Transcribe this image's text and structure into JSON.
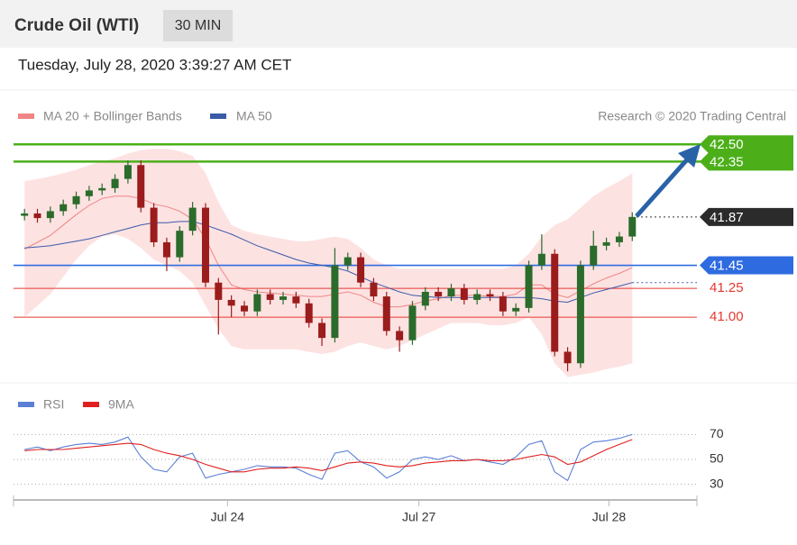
{
  "header": {
    "title": "Crude Oil (WTI)",
    "timeframe": "30 MIN",
    "timestamp": "Tuesday, July 28, 2020 3:39:27 AM CET",
    "source": "Research © 2020 Trading Central"
  },
  "chart_data": [
    {
      "type": "candlestick",
      "up_color": "#2b6b2b",
      "down_color": "#9b1c1c",
      "xlim": [
        0,
        52.5
      ],
      "ylim": [
        40.43,
        42.58
      ],
      "candles": [
        [
          41.88,
          41.94,
          41.84,
          41.9
        ],
        [
          41.9,
          41.94,
          41.82,
          41.86
        ],
        [
          41.86,
          41.96,
          41.82,
          41.92
        ],
        [
          41.92,
          42.02,
          41.88,
          41.98
        ],
        [
          41.98,
          42.09,
          41.94,
          42.05
        ],
        [
          42.05,
          42.14,
          42.01,
          42.1
        ],
        [
          42.1,
          42.16,
          42.06,
          42.12
        ],
        [
          42.12,
          42.24,
          42.08,
          42.2
        ],
        [
          42.2,
          42.36,
          42.16,
          42.32
        ],
        [
          42.32,
          42.36,
          41.91,
          41.95
        ],
        [
          41.95,
          41.99,
          41.61,
          41.65
        ],
        [
          41.65,
          41.69,
          41.4,
          41.52
        ],
        [
          41.52,
          41.79,
          41.48,
          41.75
        ],
        [
          41.75,
          42.0,
          41.71,
          41.95
        ],
        [
          41.95,
          41.99,
          41.26,
          41.3
        ],
        [
          41.3,
          41.34,
          40.85,
          41.15
        ],
        [
          41.15,
          41.19,
          41.0,
          41.1
        ],
        [
          41.1,
          41.14,
          41.01,
          41.05
        ],
        [
          41.05,
          41.24,
          41.01,
          41.2
        ],
        [
          41.2,
          41.24,
          41.11,
          41.15
        ],
        [
          41.15,
          41.22,
          41.11,
          41.18
        ],
        [
          41.18,
          41.22,
          41.08,
          41.12
        ],
        [
          41.12,
          41.16,
          40.91,
          40.95
        ],
        [
          40.95,
          40.99,
          40.75,
          40.82
        ],
        [
          40.82,
          41.6,
          40.78,
          41.45
        ],
        [
          41.45,
          41.56,
          41.41,
          41.52
        ],
        [
          41.52,
          41.56,
          41.26,
          41.3
        ],
        [
          41.3,
          41.34,
          41.14,
          41.18
        ],
        [
          41.18,
          41.22,
          40.84,
          40.88
        ],
        [
          40.88,
          40.92,
          40.7,
          40.8
        ],
        [
          40.8,
          41.14,
          40.76,
          41.1
        ],
        [
          41.1,
          41.26,
          41.06,
          41.22
        ],
        [
          41.22,
          41.26,
          41.14,
          41.18
        ],
        [
          41.18,
          41.29,
          41.14,
          41.25
        ],
        [
          41.25,
          41.29,
          41.11,
          41.15
        ],
        [
          41.15,
          41.24,
          41.11,
          41.2
        ],
        [
          41.2,
          41.24,
          41.14,
          41.18
        ],
        [
          41.18,
          41.22,
          41.01,
          41.05
        ],
        [
          41.05,
          41.12,
          41.01,
          41.08
        ],
        [
          41.08,
          41.49,
          41.04,
          41.45
        ],
        [
          41.45,
          41.72,
          41.41,
          41.55
        ],
        [
          41.55,
          41.59,
          40.66,
          40.7
        ],
        [
          40.7,
          40.74,
          40.53,
          40.6
        ],
        [
          40.6,
          41.49,
          40.56,
          41.45
        ],
        [
          41.45,
          41.75,
          41.41,
          41.62
        ],
        [
          41.62,
          41.69,
          41.58,
          41.65
        ],
        [
          41.65,
          41.74,
          41.61,
          41.7
        ],
        [
          41.7,
          41.91,
          41.66,
          41.87
        ]
      ],
      "bands": {
        "name": "MA 20 + Bollinger Bands",
        "color": "#f08585",
        "fill": "#fde2e2",
        "upper": [
          42.18,
          42.2,
          42.22,
          42.25,
          42.28,
          42.32,
          42.35,
          42.38,
          42.42,
          42.45,
          42.46,
          42.46,
          42.44,
          42.4,
          42.25,
          42.0,
          41.8,
          41.75,
          41.72,
          41.7,
          41.68,
          41.66,
          41.66,
          41.68,
          41.7,
          41.68,
          41.6,
          41.5,
          41.45,
          41.42,
          41.42,
          41.42,
          41.42,
          41.42,
          41.42,
          41.42,
          41.42,
          41.42,
          41.45,
          41.55,
          41.7,
          41.8,
          41.85,
          41.95,
          42.05,
          42.12,
          42.18,
          42.25
        ],
        "middle": [
          41.59,
          41.65,
          41.71,
          41.8,
          41.89,
          41.97,
          42.03,
          42.05,
          42.05,
          42.03,
          41.98,
          41.96,
          41.92,
          41.85,
          41.68,
          41.45,
          41.28,
          41.24,
          41.22,
          41.21,
          41.2,
          41.19,
          41.18,
          41.18,
          41.2,
          41.22,
          41.19,
          41.13,
          41.09,
          41.09,
          41.11,
          41.14,
          41.16,
          41.19,
          41.19,
          41.19,
          41.18,
          41.18,
          41.2,
          41.28,
          41.28,
          41.2,
          41.17,
          41.23,
          41.29,
          41.34,
          41.38,
          41.43
        ],
        "lower": [
          41.0,
          41.1,
          41.2,
          41.35,
          41.5,
          41.62,
          41.7,
          41.72,
          41.68,
          41.6,
          41.5,
          41.45,
          41.4,
          41.3,
          41.1,
          40.9,
          40.75,
          40.72,
          40.72,
          40.72,
          40.72,
          40.72,
          40.7,
          40.68,
          40.7,
          40.75,
          40.78,
          40.75,
          40.72,
          40.75,
          40.8,
          40.85,
          40.9,
          40.95,
          40.95,
          40.95,
          40.93,
          40.93,
          40.95,
          41.0,
          40.85,
          40.6,
          40.48,
          40.5,
          40.52,
          40.55,
          40.57,
          40.6
        ]
      },
      "series": [
        {
          "name": "MA 50",
          "color": "#3a5ba8",
          "values": [
            41.6,
            41.61,
            41.62,
            41.64,
            41.66,
            41.68,
            41.71,
            41.74,
            41.77,
            41.8,
            41.82,
            41.82,
            41.83,
            41.83,
            41.8,
            41.76,
            41.72,
            41.67,
            41.62,
            41.58,
            41.54,
            41.5,
            41.47,
            41.45,
            41.43,
            41.4,
            41.35,
            41.3,
            41.26,
            41.22,
            41.19,
            41.18,
            41.17,
            41.17,
            41.17,
            41.17,
            41.17,
            41.17,
            41.17,
            41.17,
            41.16,
            41.14,
            41.13,
            41.17,
            41.21,
            41.24,
            41.27,
            41.3
          ]
        }
      ],
      "levels": [
        {
          "value": 42.5,
          "label": "42.50",
          "color": "#4caf1a",
          "style": "box"
        },
        {
          "value": 42.35,
          "label": "42.35",
          "color": "#4caf1a",
          "style": "box"
        },
        {
          "value": 41.87,
          "label": "41.87",
          "color": "#2b2b2b",
          "style": "current"
        },
        {
          "value": 41.45,
          "label": "41.45",
          "color": "#2f6be0",
          "style": "box"
        },
        {
          "value": 41.25,
          "label": "41.25",
          "color": "#e5392f",
          "style": "text"
        },
        {
          "value": 41.0,
          "label": "41.00",
          "color": "#e5392f",
          "style": "text"
        }
      ]
    },
    {
      "type": "line",
      "xlim": [
        0,
        52.5
      ],
      "ylim": [
        21,
        79
      ],
      "yticks": [
        30,
        50,
        70
      ],
      "xticks": [
        {
          "value": 16.2,
          "label": "Jul 24"
        },
        {
          "value": 31,
          "label": "Jul 27"
        },
        {
          "value": 45.7,
          "label": "Jul 28"
        }
      ],
      "series": [
        {
          "name": "RSI",
          "color": "#5b7fd6",
          "values": [
            58,
            60,
            57,
            60,
            62,
            63,
            62,
            64,
            68,
            52,
            42,
            40,
            52,
            55,
            35,
            38,
            40,
            42,
            45,
            44,
            44,
            43,
            38,
            34,
            55,
            57,
            48,
            44,
            35,
            40,
            50,
            52,
            50,
            53,
            49,
            50,
            48,
            46,
            52,
            62,
            65,
            40,
            33,
            58,
            64,
            65,
            67,
            70
          ]
        },
        {
          "name": "9MA",
          "color": "#e02020",
          "values": [
            57,
            58,
            58,
            58,
            59,
            60,
            61,
            62,
            63,
            62,
            58,
            55,
            53,
            50,
            46,
            43,
            40,
            40,
            42,
            43,
            43,
            44,
            43,
            41,
            44,
            47,
            48,
            47,
            45,
            44,
            45,
            47,
            48,
            49,
            49,
            50,
            49,
            49,
            50,
            52,
            54,
            52,
            46,
            48,
            53,
            58,
            62,
            66
          ]
        }
      ]
    }
  ]
}
